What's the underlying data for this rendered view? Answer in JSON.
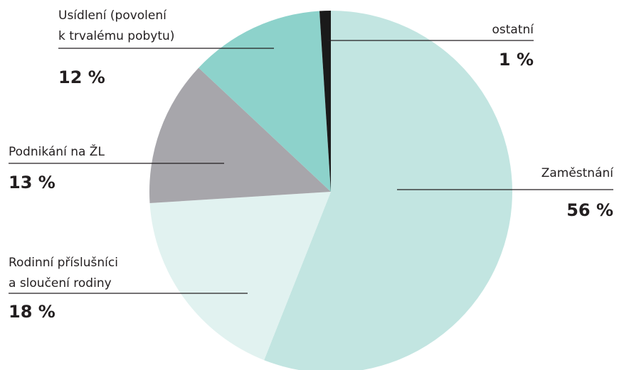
{
  "chart_data": {
    "type": "pie",
    "categories": [
      [
        "Zaměstnání"
      ],
      [
        "Rodinní příslušníci",
        "a sloučení rodiny"
      ],
      [
        "Podnikání na ŽL"
      ],
      [
        "Usídlení (povolení",
        "k trvalému pobytu)"
      ],
      [
        "ostatní"
      ]
    ],
    "values": [
      56,
      18,
      13,
      12,
      1
    ],
    "value_labels": [
      "56 %",
      "18 %",
      "13 %",
      "12 %",
      "1 %"
    ],
    "colors": [
      "#c2e5e1",
      "#e1f2f0",
      "#a7a6ab",
      "#8dd2cb",
      "#1a1a1a"
    ]
  }
}
